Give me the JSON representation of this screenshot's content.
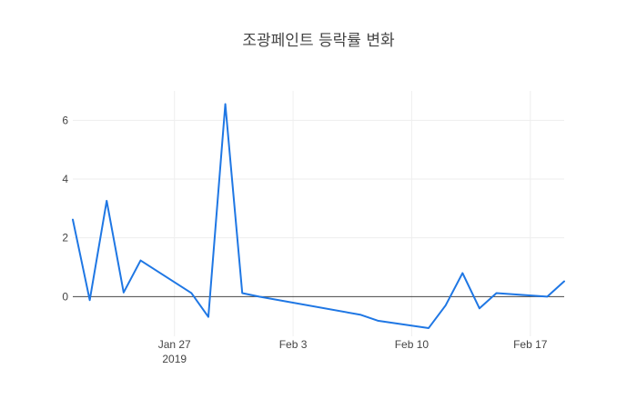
{
  "chart_data": {
    "type": "line",
    "title": "조광페인트 등락률 변화",
    "xlabel": "",
    "ylabel": "",
    "x": [
      "2019-01-21",
      "2019-01-22",
      "2019-01-23",
      "2019-01-24",
      "2019-01-25",
      "2019-01-28",
      "2019-01-29",
      "2019-01-30",
      "2019-01-31",
      "2019-02-01",
      "2019-02-07",
      "2019-02-08",
      "2019-02-11",
      "2019-02-12",
      "2019-02-13",
      "2019-02-14",
      "2019-02-15",
      "2019-02-18",
      "2019-02-19"
    ],
    "series": [
      {
        "name": "",
        "color": "#1f77e4",
        "values": [
          2.62,
          -0.12,
          3.26,
          0.14,
          1.23,
          0.12,
          -0.69,
          6.55,
          0.12,
          0.0,
          -0.62,
          -0.82,
          -1.07,
          -0.3,
          0.8,
          -0.4,
          0.12,
          0.0,
          0.52
        ]
      }
    ],
    "xlim": [
      "2019-01-21",
      "2019-02-19"
    ],
    "ylim": [
      -1.35,
      7.0
    ],
    "x_ticks": [
      {
        "date": "2019-01-27",
        "label": "Jan 27",
        "sublabel": "2019"
      },
      {
        "date": "2019-02-03",
        "label": "Feb 3",
        "sublabel": ""
      },
      {
        "date": "2019-02-10",
        "label": "Feb 10",
        "sublabel": ""
      },
      {
        "date": "2019-02-17",
        "label": "Feb 17",
        "sublabel": ""
      }
    ],
    "y_ticks": [
      0,
      2,
      4,
      6
    ],
    "grid": true,
    "legend": "none"
  }
}
